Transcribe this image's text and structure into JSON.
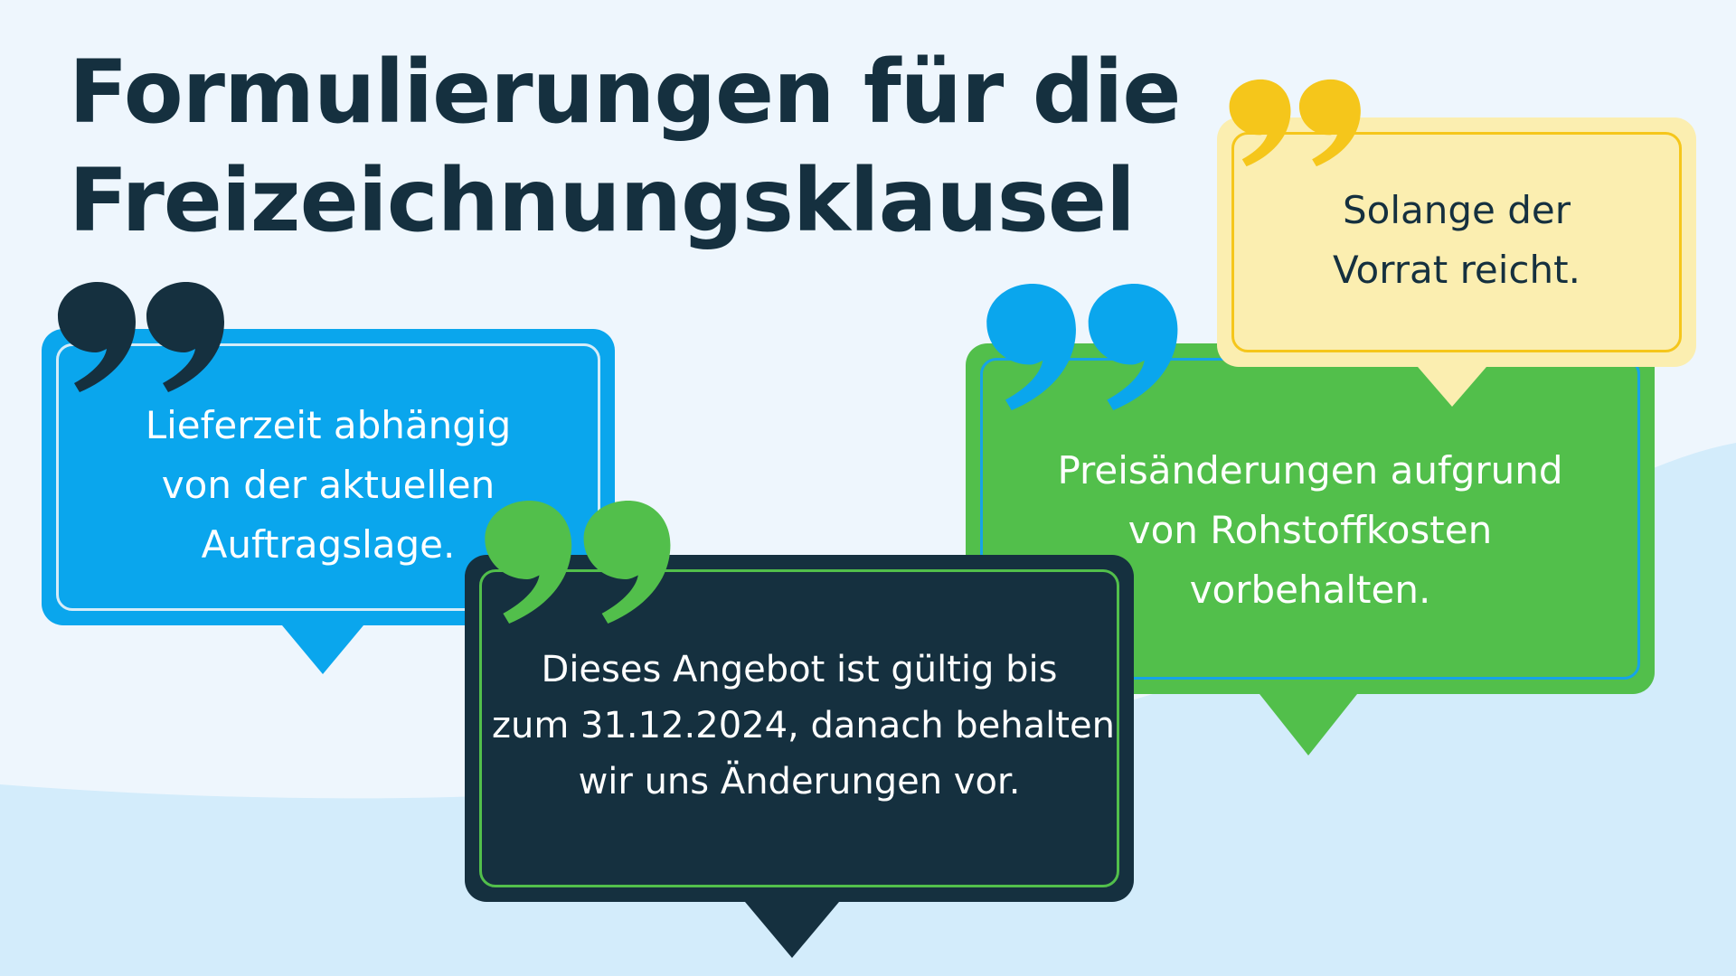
{
  "title": {
    "line1": "Formulierungen für die",
    "line2": "Freizeichnungsklausel"
  },
  "bubbles": {
    "blue": {
      "lines": [
        "Lieferzeit abhängig",
        "von der aktuellen",
        "Auftragslage."
      ],
      "color": "#0aa6ed",
      "quote_color": "#15303f"
    },
    "green": {
      "lines": [
        "Preisänderungen aufgrund",
        "von Rohstoffkosten",
        "vorbehalten."
      ],
      "color": "#52bf4b",
      "quote_color": "#0aa6ed"
    },
    "yellow": {
      "lines": [
        "Solange der",
        "Vorrat reicht."
      ],
      "color": "#fbeeb0",
      "quote_color": "#f5c61b"
    },
    "navy": {
      "lines": [
        "Dieses Angebot ist gültig bis",
        "zum 31.12.2024, danach behalten",
        "wir uns Änderungen vor."
      ],
      "color": "#15303f",
      "quote_color": "#52bf4b"
    }
  },
  "icons": [
    "quote-mark-icon"
  ]
}
